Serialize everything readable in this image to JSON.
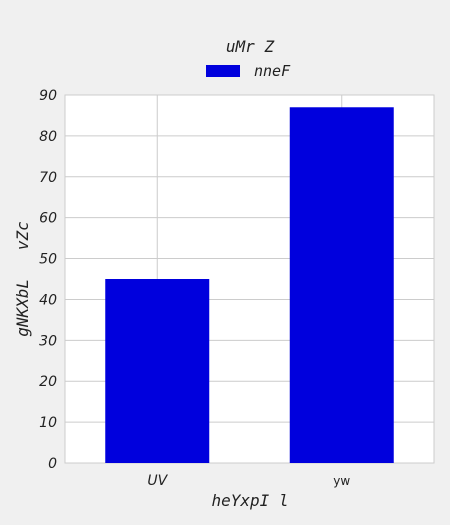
{
  "chart_data": {
    "type": "bar",
    "title": "uMr Z",
    "xlabel": "heYxpI l",
    "ylabel": "gNKXbL   vZc",
    "categories": [
      "UV",
      "yw"
    ],
    "series": [
      {
        "name": "nneF",
        "values": [
          45,
          87
        ],
        "color": "#0000dd"
      }
    ],
    "ylim": [
      0,
      90
    ],
    "yticks": [
      0,
      10,
      20,
      30,
      40,
      50,
      60,
      70,
      80,
      90
    ],
    "grid": true,
    "legend": "top-center"
  }
}
